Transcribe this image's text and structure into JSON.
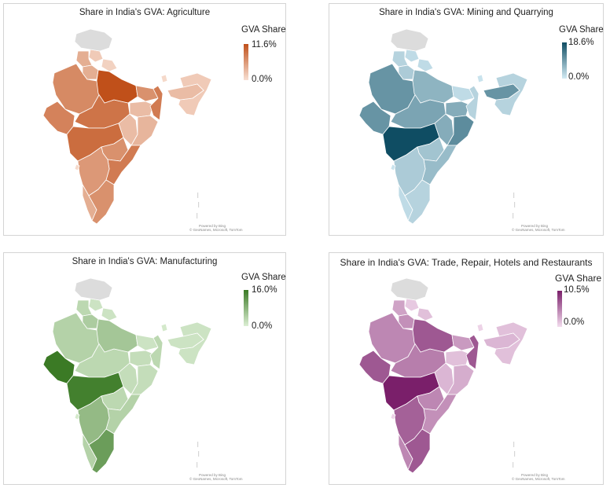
{
  "maps": [
    {
      "title": "Share in India's GVA: Agriculture",
      "legend_title": "GVA Share",
      "max_label": "11.6%",
      "min_label": "0.0%",
      "color_high": "#c0501a",
      "color_low": "#f8e0d3",
      "credit_line1": "Powered by Bing",
      "credit_line2": "© GeoNames, Microsoft, TomTom",
      "region_levels": {
        "jammu-kashmir": -1,
        "himachal": 0.15,
        "punjab": 0.35,
        "uttarakhand": 0.1,
        "haryana": 0.35,
        "rajasthan": 0.6,
        "uttar-pradesh": 1.0,
        "bihar": 0.55,
        "gujarat": 0.65,
        "madhya-pradesh": 0.75,
        "chhattisgarh": 0.25,
        "jharkhand": 0.25,
        "west-bengal": 0.7,
        "odisha": 0.3,
        "maharashtra": 0.8,
        "telangana": 0.55,
        "andhra-pradesh": 0.7,
        "karnataka": 0.5,
        "goa": 0.05,
        "kerala": 0.35,
        "tamil-nadu": 0.55,
        "sikkim": 0.05,
        "northeast": 0.15,
        "assam": 0.25
      }
    },
    {
      "title": "Share in India's GVA: Mining and Quarrying",
      "legend_title": "GVA Share",
      "max_label": "18.6%",
      "min_label": "0.0%",
      "color_high": "#0f4d63",
      "color_low": "#d3ebf4",
      "credit_line1": "Powered by Bing",
      "credit_line2": "© GeoNames, Microsoft, TomTom",
      "region_levels": {
        "jammu-kashmir": -1,
        "himachal": 0.1,
        "punjab": 0.15,
        "uttarakhand": 0.1,
        "haryana": 0.2,
        "rajasthan": 0.55,
        "uttar-pradesh": 0.35,
        "bihar": 0.1,
        "gujarat": 0.55,
        "madhya-pradesh": 0.45,
        "chhattisgarh": 0.4,
        "jharkhand": 0.4,
        "west-bengal": 0.15,
        "odisha": 0.6,
        "maharashtra": 1.0,
        "telangana": 0.25,
        "andhra-pradesh": 0.3,
        "karnataka": 0.2,
        "goa": 0.05,
        "kerala": 0.1,
        "tamil-nadu": 0.15,
        "sikkim": 0.05,
        "northeast": 0.15,
        "assam": 0.55
      }
    },
    {
      "title": "Share in India's GVA: Manufacturing",
      "legend_title": "GVA Share",
      "max_label": "16.0%",
      "min_label": "0.0%",
      "color_high": "#3b7a25",
      "color_low": "#dcefd4",
      "credit_line1": "Powered by Bing",
      "credit_line2": "© GeoNames, Microsoft, TomTom",
      "region_levels": {
        "jammu-kashmir": -1,
        "himachal": 0.1,
        "punjab": 0.2,
        "uttarakhand": 0.1,
        "haryana": 0.3,
        "rajasthan": 0.25,
        "uttar-pradesh": 0.35,
        "bihar": 0.1,
        "gujarat": 1.0,
        "madhya-pradesh": 0.2,
        "chhattisgarh": 0.15,
        "jharkhand": 0.15,
        "west-bengal": 0.2,
        "odisha": 0.15,
        "maharashtra": 0.95,
        "telangana": 0.2,
        "andhra-pradesh": 0.25,
        "karnataka": 0.45,
        "goa": 0.05,
        "kerala": 0.25,
        "tamil-nadu": 0.7,
        "sikkim": 0.05,
        "northeast": 0.1,
        "assam": 0.1
      }
    },
    {
      "title": "Share in India's GVA: Trade, Repair, Hotels and Restaurants",
      "legend_title": "GVA Share",
      "max_label": "10.5%",
      "min_label": "0.0%",
      "color_high": "#7a1f6a",
      "color_low": "#f3dcee",
      "credit_line1": "Powered by Bing",
      "credit_line2": "© GeoNames, Microsoft, TomTom",
      "region_levels": {
        "jammu-kashmir": -1,
        "himachal": 0.1,
        "punjab": 0.3,
        "uttarakhand": 0.15,
        "haryana": 0.4,
        "rajasthan": 0.45,
        "uttar-pradesh": 0.7,
        "bihar": 0.35,
        "gujarat": 0.7,
        "madhya-pradesh": 0.5,
        "chhattisgarh": 0.2,
        "jharkhand": 0.15,
        "west-bengal": 0.7,
        "odisha": 0.25,
        "maharashtra": 1.0,
        "telangana": 0.45,
        "andhra-pradesh": 0.4,
        "karnataka": 0.65,
        "goa": 0.05,
        "kerala": 0.45,
        "tamil-nadu": 0.7,
        "sikkim": 0.05,
        "northeast": 0.15,
        "assam": 0.2
      }
    }
  ]
}
